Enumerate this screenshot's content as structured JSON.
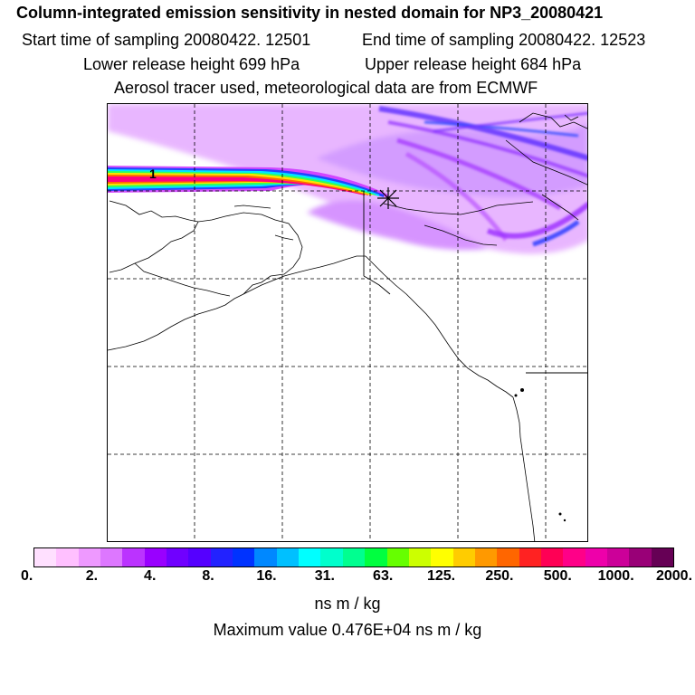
{
  "header": {
    "title": "Column-integrated emission sensitivity in nested domain for NP3_20080421",
    "start_time": "Start time of sampling 20080422. 12501",
    "end_time": "End time of sampling 20080422. 12523",
    "lower_height": "Lower release height  699 hPa",
    "upper_height": "Upper release height  684 hPa",
    "tracer_info": "Aerosol tracer used, meteorological data are from ECMWF"
  },
  "map": {
    "marker_label": "1",
    "plume_colors": [
      "#cc00ff",
      "#7f00ff",
      "#2030ff",
      "#00e0ff",
      "#20ff40",
      "#ffe000",
      "#ff0080"
    ]
  },
  "colorbar": {
    "colors": [
      "#ffe0ff",
      "#ffc0ff",
      "#ee99ff",
      "#dd77ff",
      "#bb33ff",
      "#9900ff",
      "#7000ff",
      "#5500ff",
      "#2222ff",
      "#0033ff",
      "#0088ff",
      "#00c0ff",
      "#00ffff",
      "#00ffcc",
      "#00ff90",
      "#00ff40",
      "#66ff00",
      "#ccff00",
      "#ffff00",
      "#ffcc00",
      "#ff9900",
      "#ff6600",
      "#ff2222",
      "#ff0055",
      "#ff0088",
      "#ee00aa",
      "#cc0099",
      "#990077",
      "#660055"
    ],
    "tick_labels": [
      "0.",
      "2.",
      "4.",
      "8.",
      "16.",
      "31.",
      "63.",
      "125.",
      "250.",
      "500.",
      "1000.",
      "2000."
    ],
    "units": "ns m / kg",
    "max_value": "Maximum value  0.476E+04 ns m / kg"
  }
}
